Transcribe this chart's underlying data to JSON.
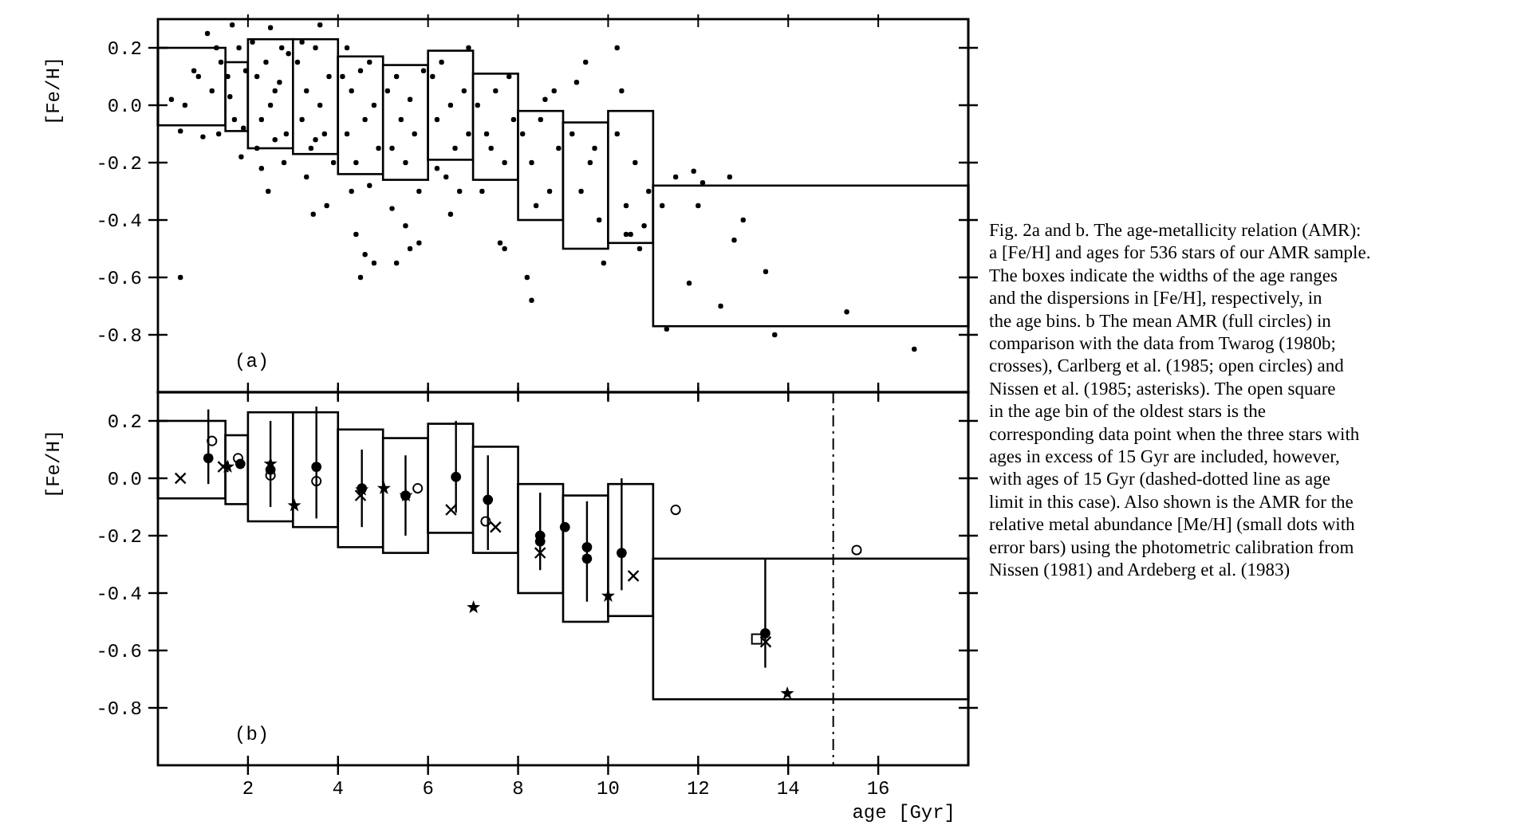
{
  "chart_data": [
    {
      "type": "bar",
      "ylabel": "[Fe/H]",
      "xlim": [
        0,
        18
      ],
      "ylim": [
        -1,
        0.3
      ],
      "xticks": [
        {
          "value": 2,
          "label": null
        },
        {
          "value": 4,
          "label": null
        },
        {
          "value": 6,
          "label": null
        },
        {
          "value": 8,
          "label": null
        },
        {
          "value": 10,
          "label": null
        },
        {
          "value": 12,
          "label": null
        },
        {
          "value": 14,
          "label": null
        },
        {
          "value": 16,
          "label": null
        }
      ],
      "yticks": [
        0.2,
        {
          "value": 0,
          "label": "0.0"
        },
        -0.2,
        -0.4,
        -0.6,
        -0.8
      ],
      "tick_labels": "y",
      "annotations": [
        "(a)"
      ],
      "series": [
        {
          "color": "#ffffff",
          "x": [
            0.75,
            1.75,
            2.5,
            3.5,
            4.5,
            5.5,
            6.5,
            7.5,
            8.5,
            9.5,
            10.5,
            14.5
          ],
          "base": [
            -0.07,
            -0.09,
            -0.15,
            -0.17,
            -0.24,
            -0.26,
            -0.19,
            -0.26,
            -0.4,
            -0.5,
            -0.48,
            -0.77
          ],
          "values": [
            0.27,
            0.24,
            0.38,
            0.4,
            0.41,
            0.4,
            0.38,
            0.37,
            0.38,
            0.44,
            0.46,
            0.49
          ]
        },
        {
          "type": "scatter",
          "marker": "circle",
          "color": "#000000",
          "x": [
            0.3,
            0.5,
            0.6,
            0.9,
            1.0,
            1.1,
            1.2,
            1.3,
            1.35,
            0.5,
            0.8,
            1.4,
            1.55,
            1.6,
            1.7,
            1.8,
            1.9,
            1.65,
            1.85,
            1.95,
            2.1,
            2.2,
            2.3,
            2.4,
            2.5,
            2.6,
            2.7,
            2.8,
            2.9,
            2.3,
            2.5,
            2.6,
            2.2,
            2.85,
            2.45,
            2.75,
            3.1,
            3.2,
            3.3,
            3.4,
            3.5,
            3.6,
            3.7,
            3.8,
            3.9,
            3.3,
            3.6,
            3.5,
            3.2,
            3.75,
            3.45,
            4.1,
            4.2,
            4.3,
            4.4,
            4.5,
            4.6,
            4.7,
            4.8,
            4.9,
            4.3,
            4.6,
            4.4,
            4.5,
            4.8,
            4.2,
            4.7,
            5.1,
            5.2,
            5.3,
            5.4,
            5.5,
            5.6,
            5.7,
            5.8,
            5.9,
            5.5,
            5.3,
            5.6,
            5.8,
            5.2,
            6.1,
            6.2,
            6.3,
            6.5,
            6.6,
            6.8,
            6.9,
            6.4,
            6.7,
            6.5,
            6.9,
            6.2,
            7.1,
            7.3,
            7.5,
            7.7,
            7.9,
            7.2,
            7.8,
            7.4,
            7.6,
            7.7,
            8.1,
            8.3,
            8.5,
            8.7,
            8.9,
            8.4,
            8.2,
            8.6,
            8.8,
            8.3,
            9.2,
            9.4,
            9.6,
            9.8,
            9.3,
            9.7,
            9.5,
            9.9,
            10.2,
            10.4,
            10.6,
            10.8,
            10.3,
            10.7,
            10.5,
            10.9,
            10.4,
            10.2,
            11.5,
            12.0,
            12.8,
            13.0,
            13.5,
            12.5,
            11.3,
            12.7,
            11.9,
            13.7,
            15.3,
            16.8,
            11.8,
            12.1,
            11.2
          ],
          "values": [
            0.02,
            -0.09,
            0.0,
            0.1,
            -0.11,
            0.25,
            0.05,
            0.2,
            -0.1,
            -0.6,
            0.12,
            0.15,
            0.1,
            0.03,
            -0.05,
            0.2,
            -0.08,
            0.28,
            -0.18,
            0.12,
            0.22,
            0.1,
            -0.05,
            0.15,
            0.0,
            -0.12,
            0.08,
            -0.2,
            0.18,
            -0.22,
            0.27,
            0.05,
            -0.15,
            -0.1,
            -0.3,
            0.2,
            0.15,
            -0.05,
            0.05,
            -0.15,
            0.2,
            0.0,
            -0.1,
            0.1,
            -0.2,
            -0.25,
            0.28,
            -0.12,
            0.22,
            -0.35,
            -0.38,
            0.1,
            -0.1,
            0.05,
            -0.2,
            0.12,
            -0.05,
            -0.28,
            0.0,
            -0.15,
            -0.3,
            -0.52,
            -0.45,
            -0.6,
            -0.55,
            0.2,
            0.15,
            0.05,
            -0.15,
            0.1,
            -0.05,
            -0.2,
            0.02,
            -0.1,
            -0.3,
            0.12,
            -0.42,
            -0.55,
            -0.5,
            -0.48,
            -0.36,
            0.1,
            -0.05,
            0.15,
            0.0,
            -0.15,
            0.05,
            -0.1,
            -0.25,
            -0.3,
            -0.38,
            0.2,
            -0.22,
            0.0,
            -0.1,
            0.05,
            -0.2,
            -0.05,
            -0.3,
            0.1,
            -0.15,
            -0.48,
            -0.5,
            -0.1,
            -0.2,
            -0.05,
            -0.3,
            -0.15,
            -0.35,
            -0.6,
            0.02,
            0.05,
            -0.68,
            -0.1,
            -0.3,
            -0.2,
            -0.4,
            0.08,
            -0.15,
            0.15,
            -0.55,
            -0.1,
            -0.35,
            -0.2,
            -0.42,
            0.05,
            -0.5,
            -0.45,
            -0.3,
            -0.45,
            0.2,
            -0.25,
            -0.35,
            -0.47,
            -0.4,
            -0.58,
            -0.7,
            -0.78,
            -0.25,
            -0.23,
            -0.8,
            -0.72,
            -0.85,
            -0.62,
            -0.27,
            -0.35
          ]
        }
      ]
    },
    {
      "type": "bar",
      "xlabel": "age [Gyr]",
      "ylabel": "[Fe/H]",
      "xlim": [
        0,
        18
      ],
      "ylim": [
        -1,
        0.3
      ],
      "xticks": [
        2,
        4,
        6,
        8,
        10,
        12,
        14,
        16
      ],
      "yticks": [
        0.2,
        {
          "value": 0,
          "label": "0.0"
        },
        -0.2,
        -0.4,
        -0.6,
        -0.8
      ],
      "ref_lines": [
        {
          "axis": "x",
          "value": 15,
          "line_style": "dashdot"
        }
      ],
      "annotations": [
        "(b)",
        "Fig. 2a and b. The age-metallicity relation (AMR): a [Fe/H] and ages for 536 stars of our AMR sample. The boxes indicate the widths of the age ranges and the dispersions in [Fe/H], respectively, in the age bins. b The mean AMR (full circles) in comparison with the data from Twarog (1980b; crosses), Carlberg et al. (1985; open circles) and Nissen et al. (1985; asterisks). The open square in the age bin of the oldest stars is the corresponding data point when the three stars with ages in excess of 15 Gyr are included, however, with ages of 15 Gyr (dashed-dotted line as age limit in this case). Also shown is the AMR for the relative metal abundance [Me/H] (small dots with error bars) using the photometric calibration from Nissen (1981) and Ardeberg et al. (1983)"
      ],
      "series": [
        {
          "color": "#ffffff",
          "x": [
            0.75,
            1.75,
            2.5,
            3.5,
            4.5,
            5.5,
            6.5,
            7.5,
            8.5,
            9.5,
            10.5,
            14.5
          ],
          "base": [
            -0.07,
            -0.09,
            -0.15,
            -0.17,
            -0.24,
            -0.26,
            -0.19,
            -0.26,
            -0.4,
            -0.5,
            -0.48,
            -0.77
          ],
          "values": [
            0.27,
            0.24,
            0.38,
            0.4,
            0.41,
            0.4,
            0.38,
            0.37,
            0.38,
            0.44,
            0.46,
            0.49
          ]
        },
        {
          "type": "scatter",
          "marker": "circle",
          "color": "#000000",
          "x": [
            1.12,
            1.83,
            2.5,
            3.52,
            4.53,
            5.5,
            6.62,
            7.33,
            8.49,
            8.49,
            9.04,
            9.53,
            9.53,
            10.3,
            13.49
          ],
          "values": [
            0.07,
            0.05,
            0.03,
            0.04,
            -0.035,
            -0.06,
            0.005,
            -0.075,
            -0.2,
            -0.22,
            -0.17,
            -0.24,
            -0.28,
            -0.26,
            -0.54
          ],
          "errors": [
            [
              -0.02,
              0.24
            ],
            null,
            [
              -0.1,
              0.2
            ],
            [
              -0.14,
              0.25
            ],
            [
              -0.17,
              0.1
            ],
            [
              -0.2,
              0.08
            ],
            [
              -0.12,
              0.2
            ],
            [
              -0.25,
              0.08
            ],
            [
              -0.32,
              -0.05
            ],
            null,
            null,
            [
              -0.43,
              -0.08
            ],
            null,
            [
              -0.39,
              0.0
            ],
            [
              -0.66,
              -0.28
            ]
          ]
        },
        {
          "type": "scatter",
          "marker": "cross",
          "color": "#000000",
          "x": [
            0.5,
            1.45,
            4.5,
            6.51,
            7.5,
            8.49,
            10.56,
            13.5
          ],
          "values": [
            0.0,
            0.04,
            -0.06,
            -0.11,
            -0.17,
            -0.26,
            -0.34,
            -0.57
          ]
        },
        {
          "type": "scatter",
          "marker": "circle-open",
          "color": "#000000",
          "x": [
            1.2,
            1.78,
            2.5,
            3.52,
            5.77,
            7.28,
            11.5,
            15.52
          ],
          "values": [
            0.13,
            0.07,
            0.01,
            -0.01,
            -0.035,
            -0.15,
            -0.11,
            -0.25
          ]
        },
        {
          "type": "scatter",
          "marker": "star",
          "color": "#000000",
          "x": [
            1.55,
            2.5,
            3.03,
            4.53,
            5.02,
            5.51,
            7.01,
            10.0,
            13.98
          ],
          "values": [
            0.04,
            0.05,
            -0.095,
            -0.04,
            -0.035,
            -0.06,
            -0.45,
            -0.41,
            -0.75
          ]
        },
        {
          "type": "scatter",
          "marker": "square-open",
          "color": "#000000",
          "x": [
            13.3
          ],
          "values": [
            -0.56
          ]
        }
      ]
    }
  ]
}
